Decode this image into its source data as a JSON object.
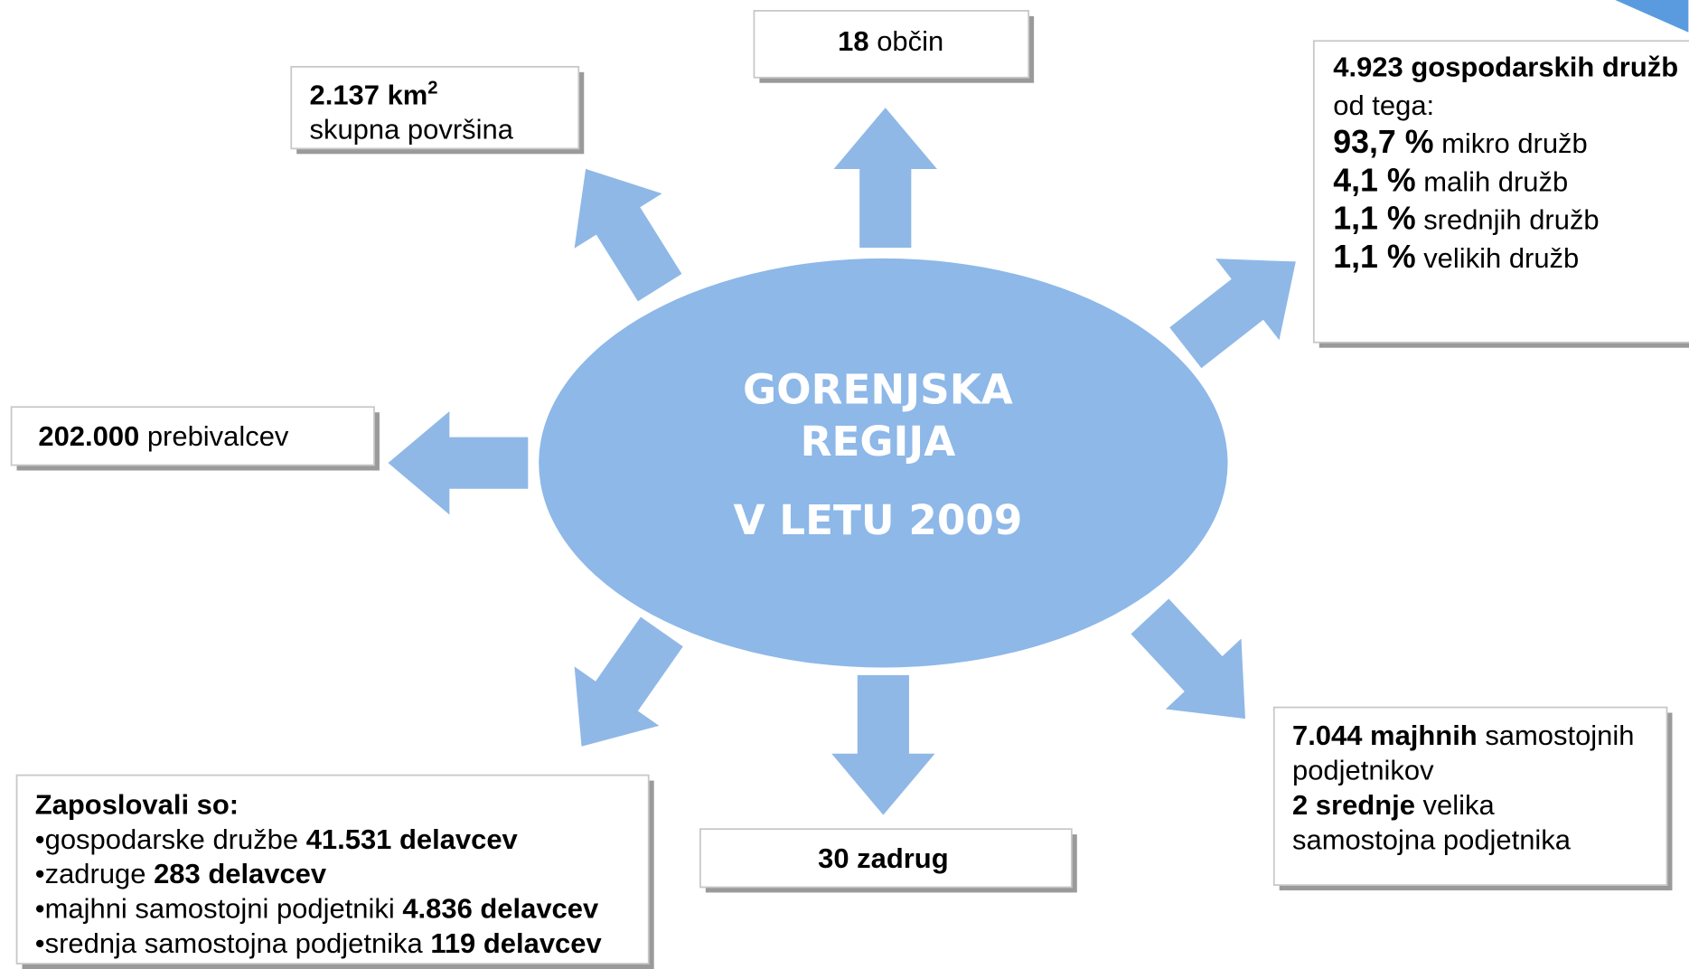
{
  "center": {
    "lines": [
      "GORENJSKA",
      "REGIJA",
      "V LETU 2009"
    ]
  },
  "boxes": [
    {
      "lines": [
        [
          {
            "text": "18",
            "bold": true
          },
          {
            "text": " občin"
          }
        ]
      ]
    },
    {
      "lines": [
        [
          {
            "text": "2.137 km",
            "bold": true
          },
          {
            "text": "2",
            "bold": true,
            "sup": true
          }
        ],
        [
          {
            "text": "skupna površina"
          }
        ]
      ]
    },
    {
      "lines": [
        [
          {
            "text": "4.923 gospodarskih družb",
            "bold": true
          }
        ],
        [
          {
            "text": "od tega:"
          }
        ],
        [
          {
            "text": "93,7 %",
            "bold": true,
            "large": true
          },
          {
            "text": " mikro družb"
          }
        ],
        [
          {
            "text": "4,1 %",
            "bold": true,
            "large": true
          },
          {
            "text": " malih družb"
          }
        ],
        [
          {
            "text": "1,1 %",
            "bold": true,
            "large": true
          },
          {
            "text": " srednjih družb"
          }
        ],
        [
          {
            "text": "1,1 %",
            "bold": true,
            "large": true
          },
          {
            "text": " velikih družb"
          }
        ]
      ]
    },
    {
      "lines": [
        [
          {
            "text": "202.000",
            "bold": true
          },
          {
            "text": " prebivalcev"
          }
        ]
      ]
    },
    {
      "lines": [
        [
          {
            "text": "Zaposlovali so:",
            "bold": true
          }
        ],
        [
          {
            "text": "•gospodarske družbe "
          },
          {
            "text": "41.531 delavcev",
            "bold": true
          }
        ],
        [
          {
            "text": "•zadruge "
          },
          {
            "text": "283 delavcev",
            "bold": true
          }
        ],
        [
          {
            "text": "•majhni samostojni podjetniki "
          },
          {
            "text": "4.836 delavcev",
            "bold": true
          }
        ],
        [
          {
            "text": "•srednja samostojna podjetnika "
          },
          {
            "text": "119 delavcev",
            "bold": true
          }
        ]
      ]
    },
    {
      "lines": [
        [
          {
            "text": "30 zadrug",
            "bold": true
          }
        ]
      ]
    },
    {
      "lines": [
        [
          {
            "text": "7.044 majhnih",
            "bold": true
          },
          {
            "text": " samostojnih"
          }
        ],
        [
          {
            "text": "podjetnikov"
          }
        ],
        [
          {
            "text": "2 srednje",
            "bold": true
          },
          {
            "text": " velika"
          }
        ],
        [
          {
            "text": "samostojna podjetnika"
          }
        ]
      ]
    }
  ]
}
